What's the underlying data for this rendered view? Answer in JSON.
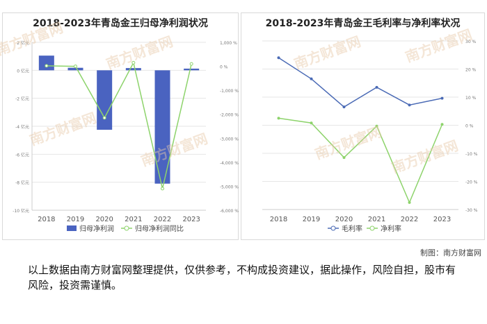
{
  "chart_data": [
    {
      "type": "bar",
      "title": "2018-2023年青岛金王归母净利润状况",
      "categories": [
        "2018",
        "2019",
        "2020",
        "2021",
        "2022",
        "2023"
      ],
      "series": [
        {
          "name": "归母净利润",
          "axis": "left",
          "chart": "bar",
          "values": [
            1.05,
            0.18,
            -4.25,
            0.16,
            -8.1,
            0.12
          ]
        },
        {
          "name": "归母净利润同比",
          "axis": "right",
          "chart": "line",
          "values": [
            20,
            0,
            -2150,
            150,
            -5100,
            100
          ]
        }
      ],
      "y_left": {
        "ticks": [
          "2 亿元",
          "0 亿元",
          "-2 亿元",
          "-4 亿元",
          "-6 亿元",
          "-8 亿元",
          "-10 亿元"
        ],
        "range": [
          -10,
          2
        ]
      },
      "y_right": {
        "ticks": [
          "1,000 %",
          "0 %",
          "-1,000 %",
          "-2,000 %",
          "-3,000 %",
          "-4,000 %",
          "-5,000 %",
          "-6,000 %"
        ],
        "range": [
          -6000,
          1000
        ]
      },
      "colors": {
        "bar": "#4a63c0",
        "line": "#8dd36b"
      },
      "legend_position": "bottom"
    },
    {
      "type": "line",
      "title": "2018-2023年青岛金王毛利率与净利率状况",
      "categories": [
        "2018",
        "2019",
        "2020",
        "2021",
        "2022",
        "2023"
      ],
      "series": [
        {
          "name": "毛利率",
          "values": [
            24,
            16.5,
            6.5,
            13.5,
            7.2,
            9.6
          ]
        },
        {
          "name": "净利率",
          "values": [
            2.5,
            0.8,
            -11.5,
            -0.3,
            -27.5,
            0.3
          ]
        }
      ],
      "y_right": {
        "ticks": [
          "30 %",
          "20 %",
          "10 %",
          "0 %",
          "-10 %",
          "-20 %",
          "-30 %"
        ],
        "range": [
          -30,
          30
        ]
      },
      "colors": {
        "gross": "#4a6ab5",
        "net": "#8dd36b"
      },
      "legend_position": "bottom"
    }
  ],
  "watermark": "南方财富网",
  "credit": "制图：南方财富网",
  "disclaimer": "以上数据由南方财富网整理提供，仅供参考，不构成投资建议，据此操作，风险自担，股市有风险，投资需谨慎。"
}
